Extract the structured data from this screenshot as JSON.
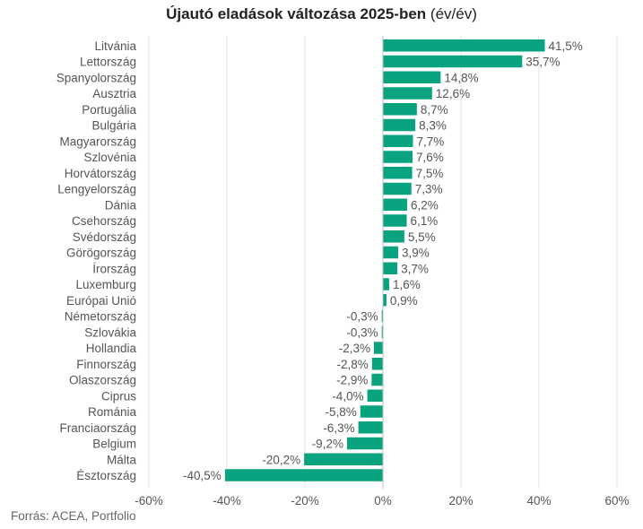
{
  "chart_data": {
    "type": "bar",
    "orientation": "horizontal",
    "title": "Újautó eladások változása 2025-ben",
    "subtitle": "(év/év)",
    "xlabel": "",
    "ylabel": "",
    "xlim": [
      -60,
      60
    ],
    "x_ticks": [
      -60,
      -40,
      -20,
      0,
      20,
      40,
      60
    ],
    "x_tick_labels": [
      "-60%",
      "-40%",
      "-20%",
      "0%",
      "20%",
      "40%",
      "60%"
    ],
    "grid": true,
    "legend": "none",
    "bar_color": "#0aa37f",
    "categories": [
      "Litvánia",
      "Lettország",
      "Spanyolország",
      "Ausztria",
      "Portugália",
      "Bulgária",
      "Magyarország",
      "Szlovénia",
      "Horvátország",
      "Lengyelország",
      "Dánia",
      "Csehország",
      "Svédország",
      "Görögország",
      "Írország",
      "Luxemburg",
      "Európai Unió",
      "Németország",
      "Szlovákia",
      "Hollandia",
      "Finnország",
      "Olaszország",
      "Ciprus",
      "Románia",
      "Franciaország",
      "Belgium",
      "Málta",
      "Észtország"
    ],
    "values": [
      41.5,
      35.7,
      14.8,
      12.6,
      8.7,
      8.3,
      7.7,
      7.6,
      7.5,
      7.3,
      6.2,
      6.1,
      5.5,
      3.9,
      3.7,
      1.6,
      0.9,
      -0.3,
      -0.3,
      -2.3,
      -2.8,
      -2.9,
      -4.0,
      -5.8,
      -6.3,
      -9.2,
      -20.2,
      -40.5
    ],
    "data_labels": [
      "41,5%",
      "35,7%",
      "14,8%",
      "12,6%",
      "8,7%",
      "8,3%",
      "7,7%",
      "7,6%",
      "7,5%",
      "7,3%",
      "6,2%",
      "6,1%",
      "5,5%",
      "3,9%",
      "3,7%",
      "1,6%",
      "0,9%",
      "-0,3%",
      "-0,3%",
      "-2,3%",
      "-2,8%",
      "-2,9%",
      "-4,0%",
      "-5,8%",
      "-6,3%",
      "-9,2%",
      "-20,2%",
      "-40,5%"
    ]
  },
  "source": "Forrás: ACEA, Portfolio"
}
